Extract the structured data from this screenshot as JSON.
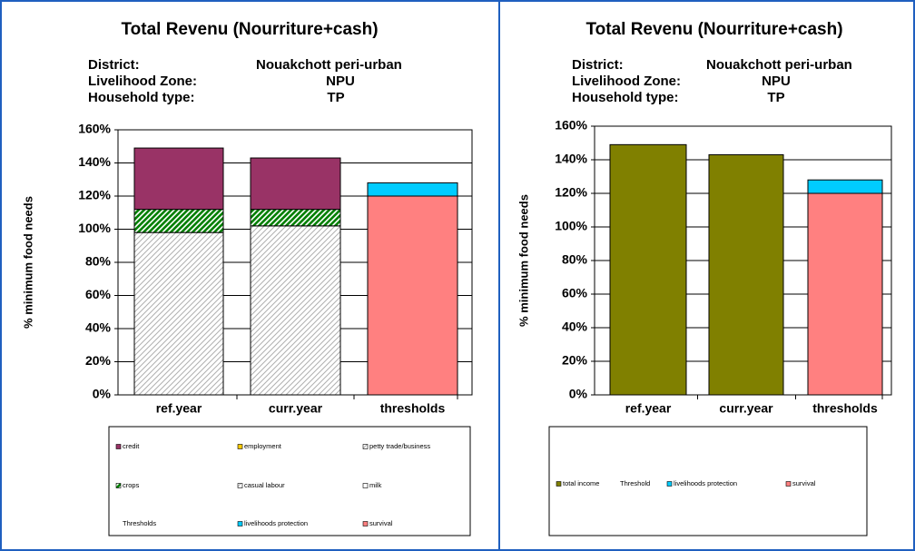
{
  "chart_data": [
    {
      "type": "stacked_bar",
      "title": "Total Revenu (Nourriture+cash)",
      "info": [
        {
          "label": "District:",
          "value": "Nouakchott peri-urban"
        },
        {
          "label": "Livelihood Zone:",
          "value": "NPU"
        },
        {
          "label": "Household type:",
          "value": "TP"
        }
      ],
      "y_label": "% minimum food needs",
      "categories": [
        "ref.year",
        "curr.year",
        "thresholds"
      ],
      "series": [
        {
          "name": "credit",
          "color": "#993366",
          "values": [
            37,
            31,
            null
          ]
        },
        {
          "name": "employment",
          "color": "#ffcc00",
          "values": [
            null,
            null,
            null
          ]
        },
        {
          "name": "petty trade/business",
          "color": "#b0b0b0",
          "hatch": true,
          "values": [
            98,
            102,
            null
          ]
        },
        {
          "name": "crops",
          "color": "#008000",
          "hatch": true,
          "values": [
            14,
            10,
            null
          ]
        },
        {
          "name": "casual labour",
          "color": "#b0b0b0",
          "hatch": true,
          "values": [
            null,
            null,
            null
          ]
        },
        {
          "name": "milk",
          "color": "#ffffff",
          "values": [
            null,
            null,
            null
          ]
        },
        {
          "name": "Thresholds",
          "values": [
            null,
            null,
            null
          ]
        },
        {
          "name": "livelihoods protection",
          "color": "#00ccff",
          "values": [
            null,
            null,
            8
          ]
        },
        {
          "name": "survival",
          "color": "#ff8080",
          "values": [
            null,
            null,
            120
          ]
        }
      ],
      "ylim": [
        0,
        160
      ],
      "yticks": [
        {
          "value": 0,
          "label": "0%"
        },
        {
          "value": 20,
          "label": "20%"
        },
        {
          "value": 40,
          "label": "40%"
        },
        {
          "value": 60,
          "label": "60%"
        },
        {
          "value": 80,
          "label": "80%"
        },
        {
          "value": 100,
          "label": "100%"
        },
        {
          "value": 120,
          "label": "120%"
        },
        {
          "value": 140,
          "label": "140%"
        },
        {
          "value": 160,
          "label": "160%"
        }
      ],
      "grid": true
    },
    {
      "type": "stacked_bar",
      "title": "Total Revenu (Nourriture+cash)",
      "info": [
        {
          "label": "District:",
          "value": "Nouakchott peri-urban"
        },
        {
          "label": "Livelihood Zone:",
          "value": "NPU"
        },
        {
          "label": "Household type:",
          "value": "TP"
        }
      ],
      "y_label": "% minimum food needs",
      "categories": [
        "ref.year",
        "curr.year",
        "thresholds"
      ],
      "series": [
        {
          "name": "total income",
          "color": "#808000",
          "values": [
            149,
            143,
            null
          ]
        },
        {
          "name": "Threshold",
          "values": [
            null,
            null,
            null
          ]
        },
        {
          "name": "livelihoods protection",
          "color": "#00ccff",
          "values": [
            null,
            null,
            8
          ]
        },
        {
          "name": "survival",
          "color": "#ff8080",
          "values": [
            null,
            null,
            120
          ]
        }
      ],
      "ylim": [
        0,
        160
      ],
      "yticks": [
        {
          "value": 0,
          "label": "0%"
        },
        {
          "value": 20,
          "label": "20%"
        },
        {
          "value": 40,
          "label": "40%"
        },
        {
          "value": 60,
          "label": "60%"
        },
        {
          "value": 80,
          "label": "80%"
        },
        {
          "value": 100,
          "label": "100%"
        },
        {
          "value": 120,
          "label": "120%"
        },
        {
          "value": 140,
          "label": "140%"
        },
        {
          "value": 160,
          "label": "160%"
        }
      ],
      "grid": true
    }
  ]
}
